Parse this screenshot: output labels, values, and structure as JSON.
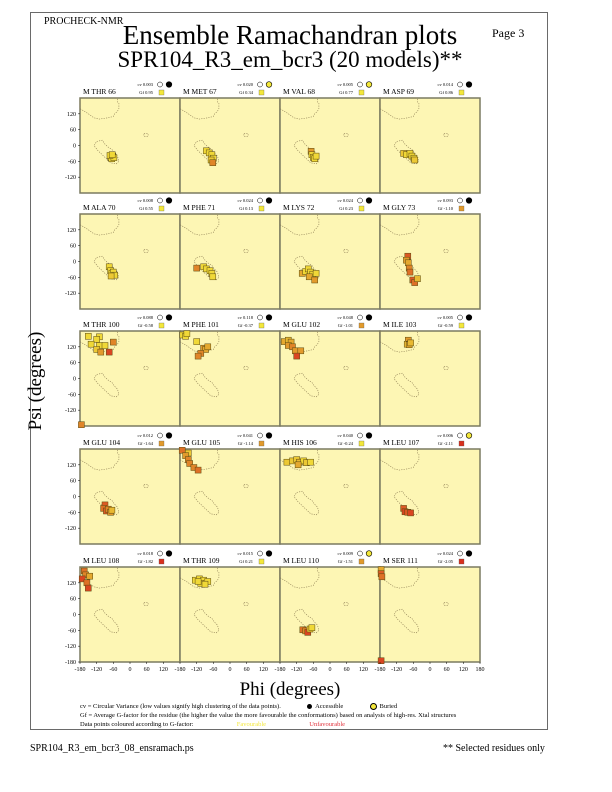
{
  "header": {
    "program": "PROCHECK-NMR",
    "page_label": "Page  3",
    "title": "Ensemble Ramachandran plots",
    "subtitle": "SPR104_R3_em_bcr3 (20 models)**"
  },
  "footer": {
    "filename": "SPR104_R3_em_bcr3_08_ensramach.ps",
    "note": "** Selected residues only"
  },
  "legend": {
    "cv_text": "cv = Circular Variance (low values signify high clustering of the data points).",
    "accessible": "Accessible",
    "buried": "Buried",
    "gf_text": "Gf = Average G-factor for the residue (the higher the value the more favourable the conformations) based on analysis of high-res. Xtal structures",
    "colour_text": "Data points coloured according to G-factor:",
    "favourable": "Favourable",
    "unfavourable": "Unfavourable"
  },
  "colors": {
    "panel_bg": "#fdf6b4",
    "favourable": "#f3e73a",
    "mid": "#e29a2c",
    "unfavourable": "#d8301e",
    "region_line": "#8a7a50",
    "border": "#6a6a6a"
  },
  "chart_data": {
    "type": "scatter",
    "title": "Ensemble Ramachandran plots",
    "xlabel": "Phi (degrees)",
    "ylabel": "Psi (degrees)",
    "xlim": [
      -180,
      180
    ],
    "ylim": [
      -180,
      180
    ],
    "x_ticks": [
      "-180",
      "-120",
      "-60",
      "0",
      "60",
      "120",
      "180"
    ],
    "y_ticks": [
      "120",
      "60",
      "0",
      "-60",
      "-120",
      "-180"
    ],
    "panels": [
      {
        "label": "M THR 66",
        "cv": "cv 0.003",
        "gf": "Gf 0.95",
        "gf_color": "fav",
        "buried": false,
        "points": [
          [
            -70,
            -45,
            0.9
          ],
          [
            -62,
            -40,
            0.9
          ],
          [
            -66,
            -50,
            0.9
          ],
          [
            -58,
            -46,
            0.9
          ],
          [
            -72,
            -38,
            0.9
          ],
          [
            -64,
            -35,
            0.9
          ]
        ]
      },
      {
        "label": "M MET 67",
        "cv": "cv 0.020",
        "gf": "Gf 0.34",
        "gf_color": "fav",
        "buried": true,
        "points": [
          [
            -85,
            -20,
            0.9
          ],
          [
            -75,
            -28,
            0.9
          ],
          [
            -65,
            -35,
            0.9
          ],
          [
            -60,
            -48,
            0.9
          ],
          [
            -68,
            -55,
            0.8
          ],
          [
            -62,
            -65,
            0.4
          ]
        ]
      },
      {
        "label": "M VAL 68",
        "cv": "cv 0.005",
        "gf": "Gf 0.77",
        "gf_color": "fav",
        "buried": true,
        "points": [
          [
            -68,
            -22,
            0.5
          ],
          [
            -65,
            -35,
            0.9
          ],
          [
            -60,
            -45,
            0.9
          ],
          [
            -55,
            -50,
            0.9
          ],
          [
            -50,
            -40,
            0.9
          ]
        ]
      },
      {
        "label": "M ASP 69",
        "cv": "cv 0.014",
        "gf": "Gf 0.86",
        "gf_color": "fav",
        "buried": false,
        "points": [
          [
            -95,
            -30,
            0.8
          ],
          [
            -85,
            -35,
            0.9
          ],
          [
            -72,
            -30,
            0.9
          ],
          [
            -65,
            -40,
            0.9
          ],
          [
            -58,
            -48,
            0.9
          ],
          [
            -55,
            -55,
            0.8
          ]
        ]
      },
      {
        "label": "M ALA 70",
        "cv": "cv 0.008",
        "gf": "Gf 0.55",
        "gf_color": "fav",
        "buried": false,
        "points": [
          [
            -75,
            -20,
            0.9
          ],
          [
            -70,
            -35,
            0.9
          ],
          [
            -65,
            -45,
            0.9
          ],
          [
            -60,
            -40,
            0.9
          ],
          [
            -55,
            -52,
            0.9
          ],
          [
            -68,
            -55,
            0.8
          ]
        ]
      },
      {
        "label": "M PHE 71",
        "cv": "cv 0.024",
        "gf": "Gf 0.13",
        "gf_color": "fav",
        "buried": false,
        "points": [
          [
            -120,
            -25,
            0.4
          ],
          [
            -95,
            -20,
            0.9
          ],
          [
            -85,
            -28,
            0.9
          ],
          [
            -72,
            -35,
            0.9
          ],
          [
            -65,
            -45,
            0.9
          ],
          [
            -62,
            -58,
            0.9
          ]
        ]
      },
      {
        "label": "M LYS 72",
        "cv": "cv 0.024",
        "gf": "Gf 0.23",
        "gf_color": "fav",
        "buried": false,
        "points": [
          [
            -100,
            -45,
            0.6
          ],
          [
            -88,
            -38,
            0.9
          ],
          [
            -78,
            -28,
            0.9
          ],
          [
            -70,
            -40,
            0.9
          ],
          [
            -62,
            -48,
            0.9
          ],
          [
            -75,
            -58,
            0.6
          ],
          [
            -55,
            -70,
            0.5
          ],
          [
            -50,
            -45,
            0.9
          ]
        ]
      },
      {
        "label": "M GLY 73",
        "cv": "cv 0.093",
        "gf": "Gf -1.10",
        "gf_color": "mid",
        "buried": false,
        "points": [
          [
            -80,
            20,
            0.2
          ],
          [
            -85,
            5,
            0.5
          ],
          [
            -78,
            -5,
            0.6
          ],
          [
            -75,
            -25,
            0.4
          ],
          [
            -72,
            -40,
            0.3
          ],
          [
            -62,
            -70,
            0.2
          ],
          [
            -55,
            -80,
            0.3
          ],
          [
            -45,
            -65,
            0.7
          ]
        ]
      },
      {
        "label": "M THR 100",
        "cv": "cv 0.088",
        "gf": "Gf -0.58",
        "gf_color": "fav",
        "buried": false,
        "points": [
          [
            -150,
            160,
            0.9
          ],
          [
            -110,
            158,
            0.9
          ],
          [
            -120,
            148,
            0.9
          ],
          [
            -140,
            130,
            0.9
          ],
          [
            -110,
            125,
            0.9
          ],
          [
            -90,
            125,
            0.9
          ],
          [
            -120,
            110,
            0.8
          ],
          [
            -105,
            100,
            0.5
          ],
          [
            -75,
            100,
            0.1
          ],
          [
            -60,
            138,
            0.4
          ],
          [
            -175,
            -175,
            0.4
          ]
        ]
      },
      {
        "label": "M PHE 101",
        "cv": "cv 0.118",
        "gf": "Gf -0.37",
        "gf_color": "fav",
        "buried": false,
        "points": [
          [
            -170,
            165,
            0.9
          ],
          [
            -160,
            160,
            0.9
          ],
          [
            -155,
            170,
            0.9
          ],
          [
            -120,
            140,
            0.9
          ],
          [
            -95,
            115,
            0.5
          ],
          [
            -88,
            110,
            0.6
          ],
          [
            -105,
            95,
            0.4
          ],
          [
            -115,
            85,
            0.4
          ],
          [
            -80,
            120,
            0.6
          ]
        ]
      },
      {
        "label": "M GLU 102",
        "cv": "cv 0.048",
        "gf": "Gf -1.01",
        "gf_color": "mid",
        "buried": false,
        "points": [
          [
            -165,
            140,
            0.6
          ],
          [
            -150,
            145,
            0.7
          ],
          [
            -140,
            138,
            0.6
          ],
          [
            -150,
            125,
            0.5
          ],
          [
            -135,
            120,
            0.4
          ],
          [
            -125,
            105,
            0.5
          ],
          [
            -105,
            105,
            0.5
          ],
          [
            -120,
            85,
            0.1
          ]
        ]
      },
      {
        "label": "M ILE 103",
        "cv": "cv 0.005",
        "gf": "Gf -0.59",
        "gf_color": "fav",
        "buried": false,
        "points": [
          [
            -78,
            145,
            0.5
          ],
          [
            -82,
            130,
            0.7
          ],
          [
            -75,
            128,
            0.6
          ],
          [
            -70,
            135,
            0.7
          ]
        ]
      },
      {
        "label": "M GLU 104",
        "cv": "cv 0.012",
        "gf": "Gf -1.64",
        "gf_color": "mid",
        "buried": false,
        "points": [
          [
            -90,
            -32,
            0.2
          ],
          [
            -95,
            -45,
            0.3
          ],
          [
            -85,
            -55,
            0.2
          ],
          [
            -78,
            -48,
            0.4
          ],
          [
            -70,
            -60,
            0.5
          ],
          [
            -65,
            -52,
            0.7
          ]
        ]
      },
      {
        "label": "M GLU 105",
        "cv": "cv 0.041",
        "gf": "Gf -1.14",
        "gf_color": "mid",
        "buried": false,
        "points": [
          [
            -172,
            175,
            0.3
          ],
          [
            -150,
            165,
            0.8
          ],
          [
            -160,
            155,
            0.5
          ],
          [
            -150,
            140,
            0.4
          ],
          [
            -145,
            125,
            0.4
          ],
          [
            -130,
            110,
            0.4
          ],
          [
            -115,
            100,
            0.3
          ]
        ]
      },
      {
        "label": "M HIS 106",
        "cv": "cv 0.040",
        "gf": "Gf -0.24",
        "gf_color": "fav",
        "buried": false,
        "points": [
          [
            -155,
            130,
            0.8
          ],
          [
            -135,
            135,
            0.8
          ],
          [
            -120,
            140,
            0.8
          ],
          [
            -110,
            130,
            0.7
          ],
          [
            -95,
            135,
            0.9
          ],
          [
            -85,
            128,
            0.8
          ],
          [
            -70,
            130,
            0.9
          ],
          [
            -115,
            120,
            0.6
          ]
        ]
      },
      {
        "label": "M LEU 107",
        "cv": "cv 0.006",
        "gf": "Gf -2.11",
        "gf_color": "unfav",
        "buried": true,
        "points": [
          [
            -95,
            -45,
            0.2
          ],
          [
            -90,
            -58,
            0.1
          ],
          [
            -80,
            -60,
            0.2
          ],
          [
            -70,
            -62,
            0.1
          ]
        ]
      },
      {
        "label": "M LEU 108",
        "cv": "cv 0.018",
        "gf": "Gf -1.82",
        "gf_color": "unfav",
        "buried": false,
        "points": [
          [
            -165,
            165,
            0.3
          ],
          [
            -160,
            150,
            0.4
          ],
          [
            -172,
            135,
            0.1
          ],
          [
            -145,
            145,
            0.6
          ],
          [
            -155,
            120,
            0.3
          ],
          [
            -150,
            100,
            0.1
          ]
        ]
      },
      {
        "label": "M THR 109",
        "cv": "cv 0.015",
        "gf": "Gf 0.21",
        "gf_color": "fav",
        "buried": false,
        "points": [
          [
            -125,
            130,
            0.9
          ],
          [
            -110,
            135,
            0.9
          ],
          [
            -95,
            130,
            0.9
          ],
          [
            -80,
            125,
            0.9
          ],
          [
            -105,
            118,
            0.9
          ],
          [
            -90,
            115,
            0.9
          ],
          [
            -115,
            125,
            0.9
          ]
        ]
      },
      {
        "label": "M LEU 110",
        "cv": "cv 0.009",
        "gf": "Gf -1.51",
        "gf_color": "mid",
        "buried": true,
        "points": [
          [
            -98,
            -58,
            0.3
          ],
          [
            -88,
            -62,
            0.4
          ],
          [
            -80,
            -68,
            0.1
          ],
          [
            -72,
            -55,
            0.8
          ],
          [
            -65,
            -50,
            0.9
          ]
        ]
      },
      {
        "label": "M SER 111",
        "cv": "cv 0.024",
        "gf": "Gf -2.05",
        "gf_color": "unfav",
        "buried": false,
        "points": [
          [
            -176,
            170,
            0.6
          ],
          [
            -176,
            155,
            0.2
          ],
          [
            -173,
            143,
            0.3
          ],
          [
            -176,
            -175,
            0.1
          ]
        ]
      }
    ]
  }
}
